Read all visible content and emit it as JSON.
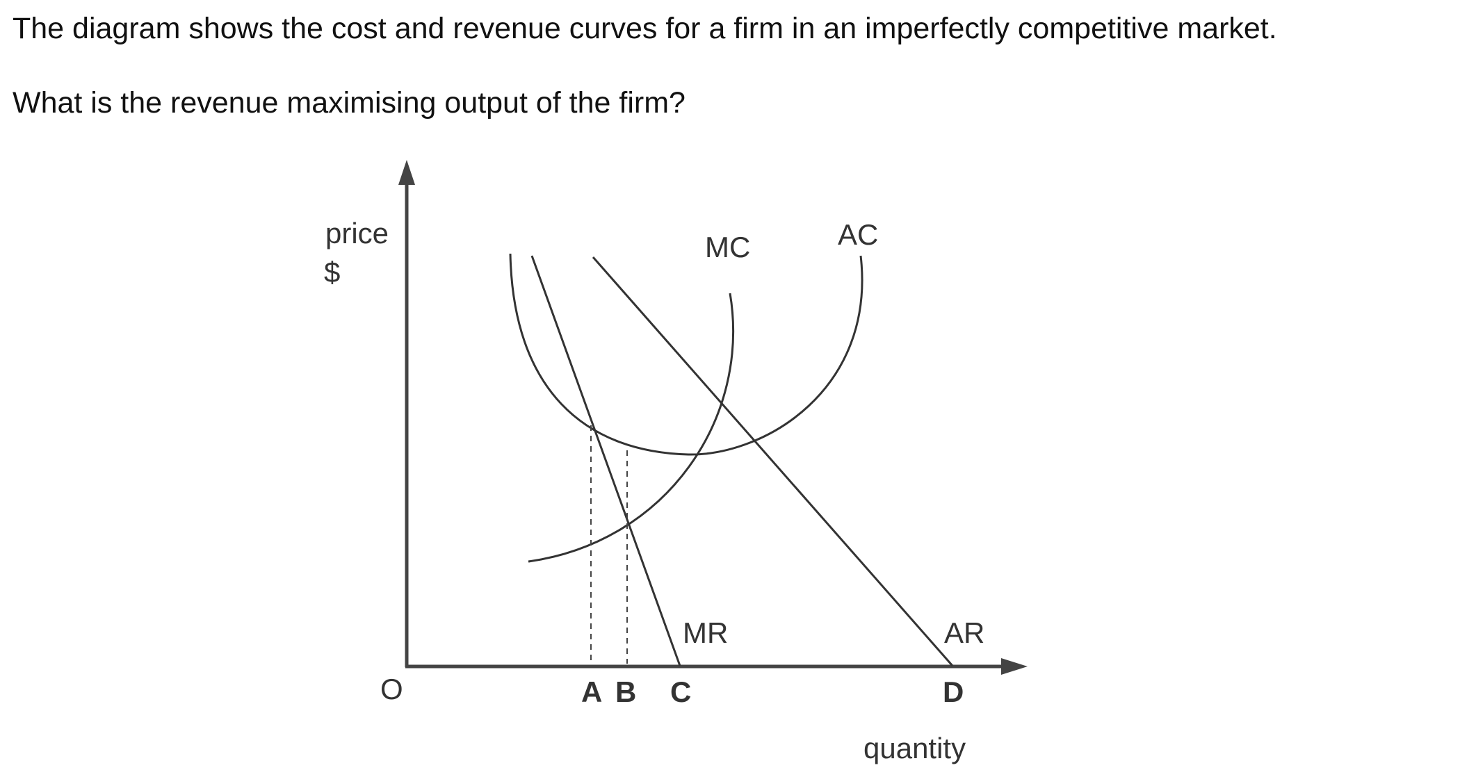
{
  "question": {
    "line1": "The diagram shows the cost and revenue curves for a firm in an imperfectly competitive market.",
    "line2": "What is the revenue maximising output of the firm?"
  },
  "diagram": {
    "y_axis_label_line1": "price",
    "y_axis_label_line2": "$",
    "origin_label": "O",
    "x_axis_label": "quantity",
    "curve_labels": {
      "mc": "MC",
      "ac": "AC",
      "mr": "MR",
      "ar": "AR"
    },
    "point_labels": [
      "A",
      "B",
      "C",
      "D"
    ]
  }
}
